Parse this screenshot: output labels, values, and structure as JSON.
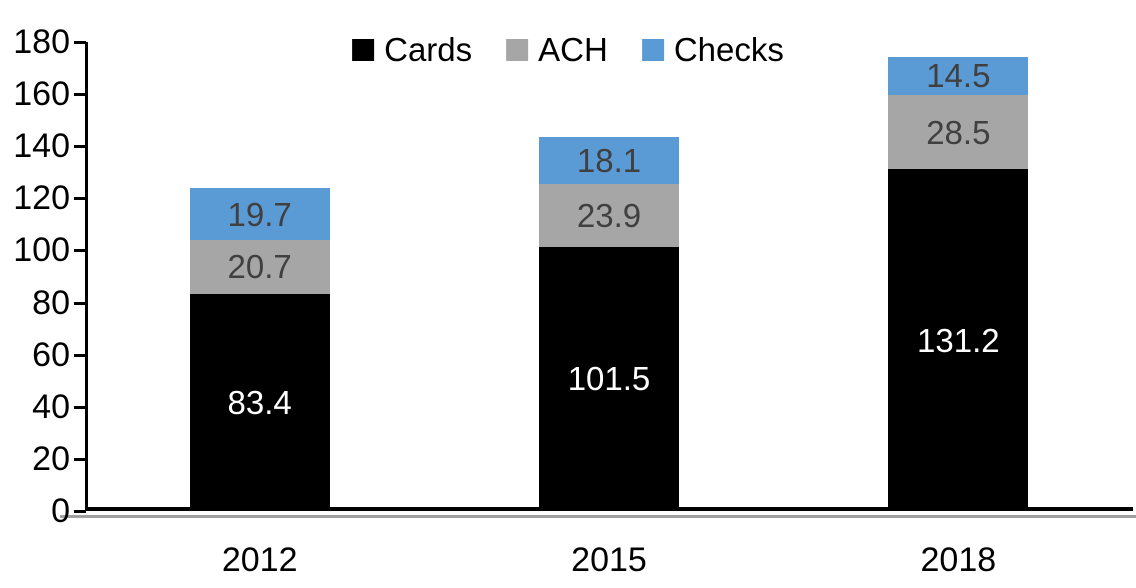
{
  "chart_data": {
    "type": "bar",
    "stacked": true,
    "title": "",
    "xlabel": "",
    "ylabel": "",
    "categories": [
      "2012",
      "2015",
      "2018"
    ],
    "series": [
      {
        "name": "Cards",
        "color": "#000000",
        "label_color": "#ffffff",
        "values": [
          83.4,
          101.5,
          131.2
        ]
      },
      {
        "name": "ACH",
        "color": "#a6a6a6",
        "label_color": "#404040",
        "values": [
          20.7,
          23.9,
          28.5
        ]
      },
      {
        "name": "Checks",
        "color": "#5b9bd5",
        "label_color": "#404040",
        "values": [
          19.7,
          18.1,
          14.5
        ]
      }
    ],
    "totals": [
      123.8,
      143.5,
      174.2
    ],
    "ylim": [
      0,
      180
    ],
    "ytick_step": 20,
    "yticks": [
      0,
      20,
      40,
      60,
      80,
      100,
      120,
      140,
      160,
      180
    ],
    "grid": false,
    "legend_position": "top-center",
    "axis_color": "#000000"
  }
}
